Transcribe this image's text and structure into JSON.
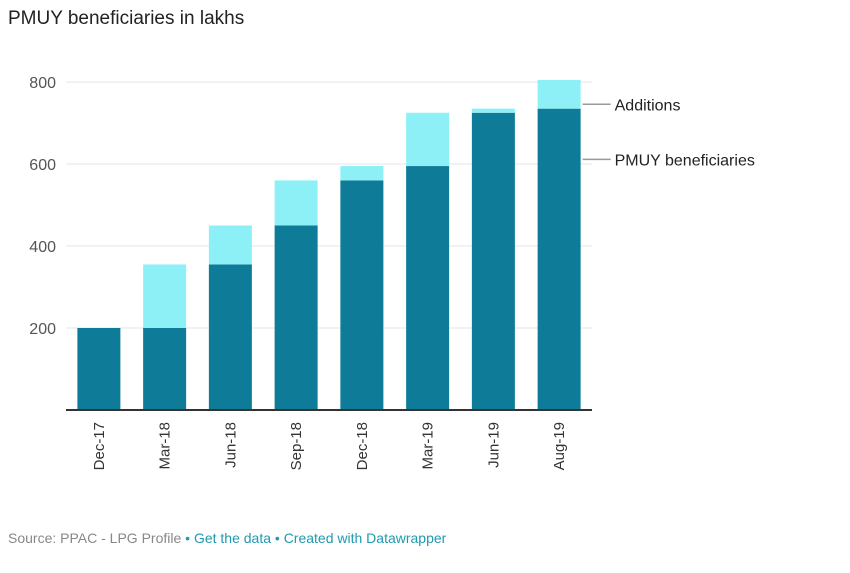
{
  "title": "PMUY beneficiaries in lakhs",
  "footer": {
    "source": "Source: PPAC - LPG Profile",
    "sep": " • ",
    "get_data": "Get the data",
    "created_with": "Created with Datawrapper"
  },
  "colors": {
    "beneficiaries": "#0e7b99",
    "additions": "#8ef0f7",
    "grid": "#e6e6e6",
    "axis": "#333333",
    "label_line": "#999999"
  },
  "chart_data": {
    "type": "bar",
    "stacked": true,
    "title": "PMUY beneficiaries in lakhs",
    "categories": [
      "Dec-17",
      "Mar-18",
      "Jun-18",
      "Sep-18",
      "Dec-18",
      "Mar-19",
      "Jun-19",
      "Aug-19"
    ],
    "series": [
      {
        "name": "PMUY beneficiaries",
        "values": [
          200,
          200,
          355,
          450,
          560,
          595,
          725,
          735
        ]
      },
      {
        "name": "Additions",
        "values": [
          0,
          155,
          95,
          110,
          35,
          130,
          10,
          70
        ]
      }
    ],
    "ylim": [
      0,
      800
    ],
    "yticks": [
      200,
      400,
      600,
      800
    ],
    "grid": true,
    "legend": "right-inline"
  }
}
